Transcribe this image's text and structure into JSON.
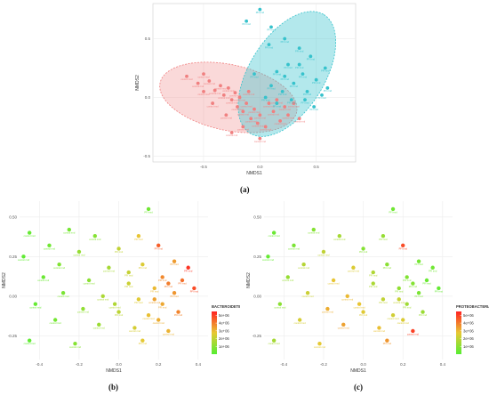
{
  "colors": {
    "control": "#f08080",
    "pfi": "#36c2cc",
    "control_fill": "rgba(240,128,128,0.30)",
    "pfi_fill": "rgba(54,194,204,0.38)",
    "overlap_fill": "rgba(120,120,120,0.15)",
    "grad_low": "#55ee33",
    "grad_mid": "#e8c834",
    "grad_high": "#ff2222"
  },
  "captions": {
    "a": "(a)",
    "b": "(b)",
    "c": "(c)"
  },
  "chart_data": [
    {
      "id": "a",
      "type": "scatter",
      "xlabel": "NMDS1",
      "ylabel": "NMDS2",
      "x_ticks": [
        "-0.5",
        "0.0",
        "0.5"
      ],
      "y_ticks": [
        "0.5",
        "0.0",
        "-0.5"
      ],
      "xlim": [
        -0.95,
        0.85
      ],
      "ylim": [
        -0.55,
        0.8
      ],
      "series": [
        {
          "name": "control rmd",
          "color_key": "control",
          "points": [
            [
              -0.65,
              0.18
            ],
            [
              -0.55,
              0.12
            ],
            [
              -0.5,
              0.2
            ],
            [
              -0.45,
              0.14
            ],
            [
              -0.4,
              0.06
            ],
            [
              -0.35,
              0.1
            ],
            [
              -0.32,
              0.02
            ],
            [
              -0.28,
              0.08
            ],
            [
              -0.25,
              -0.02
            ],
            [
              -0.22,
              0.04
            ],
            [
              -0.2,
              -0.08
            ],
            [
              -0.18,
              0.0
            ],
            [
              -0.15,
              -0.12
            ],
            [
              -0.12,
              -0.05
            ],
            [
              -0.1,
              0.05
            ],
            [
              -0.08,
              -0.18
            ],
            [
              -0.05,
              -0.1
            ],
            [
              -0.02,
              -0.22
            ],
            [
              0.0,
              -0.15
            ],
            [
              0.05,
              -0.25
            ],
            [
              0.08,
              -0.05
            ],
            [
              0.12,
              -0.12
            ],
            [
              0.15,
              -0.02
            ],
            [
              0.18,
              -0.2
            ],
            [
              0.22,
              -0.08
            ],
            [
              0.25,
              -0.15
            ],
            [
              -0.3,
              -0.15
            ],
            [
              -0.42,
              -0.05
            ],
            [
              -0.5,
              0.05
            ],
            [
              -0.15,
              -0.25
            ],
            [
              -0.25,
              -0.3
            ],
            [
              0.0,
              -0.35
            ],
            [
              0.3,
              -0.05
            ],
            [
              0.35,
              -0.18
            ]
          ]
        },
        {
          "name": "PFI rmd",
          "color_key": "pfi",
          "points": [
            [
              0.0,
              0.75
            ],
            [
              -0.12,
              0.65
            ],
            [
              0.1,
              0.6
            ],
            [
              0.22,
              0.5
            ],
            [
              0.08,
              0.45
            ],
            [
              0.35,
              0.42
            ],
            [
              0.45,
              0.35
            ],
            [
              0.25,
              0.28
            ],
            [
              0.15,
              0.22
            ],
            [
              0.38,
              0.2
            ],
            [
              0.5,
              0.15
            ],
            [
              0.3,
              0.12
            ],
            [
              0.1,
              0.1
            ],
            [
              0.2,
              0.05
            ],
            [
              0.42,
              0.05
            ],
            [
              0.55,
              0.02
            ],
            [
              0.05,
              0.0
            ],
            [
              0.28,
              -0.02
            ],
            [
              0.48,
              -0.08
            ],
            [
              0.15,
              -0.05
            ],
            [
              0.35,
              0.28
            ],
            [
              0.6,
              0.08
            ],
            [
              -0.05,
              0.2
            ],
            [
              0.22,
              0.18
            ],
            [
              0.4,
              -0.02
            ],
            [
              0.58,
              0.25
            ]
          ]
        }
      ],
      "ellipses": [
        {
          "group": "control",
          "center": [
            -0.28,
            0.0
          ],
          "semi_axes": [
            0.62,
            0.28
          ],
          "rotation_deg": 12
        },
        {
          "group": "PFI",
          "center": [
            0.24,
            0.2
          ],
          "semi_axes": [
            0.62,
            0.32
          ],
          "rotation_deg": -58
        }
      ]
    },
    {
      "id": "b",
      "type": "scatter",
      "xlabel": "NMDS1",
      "ylabel": "NMDS2",
      "x_ticks": [
        "-0.4",
        "-0.2",
        "0.0",
        "0.2",
        "0.4"
      ],
      "y_ticks": [
        "0.50",
        "0.25",
        "0.00",
        "-0.25"
      ],
      "xlim": [
        -0.5,
        0.45
      ],
      "ylim": [
        -0.4,
        0.6
      ],
      "legend": {
        "title": "BACTEROIDETES",
        "ticks": [
          "5e+06",
          "4e+06",
          "3e+06",
          "2e+06",
          "1e+06"
        ],
        "position": "right"
      },
      "colorbar_range": [
        0,
        5500000
      ],
      "points": [
        {
          "x": 0.15,
          "y": 0.55,
          "v": 500000,
          "label": "PFI rmd"
        },
        {
          "x": -0.45,
          "y": 0.4,
          "v": 300000,
          "label": "control rmd"
        },
        {
          "x": -0.25,
          "y": 0.42,
          "v": 600000,
          "label": "control rmd"
        },
        {
          "x": -0.12,
          "y": 0.38,
          "v": 900000,
          "label": "control rmd"
        },
        {
          "x": 0.1,
          "y": 0.38,
          "v": 2800000,
          "label": "PFI rmd"
        },
        {
          "x": -0.35,
          "y": 0.32,
          "v": 500000,
          "label": "control rmd"
        },
        {
          "x": -0.48,
          "y": 0.25,
          "v": 200000,
          "label": "control rmd"
        },
        {
          "x": 0.2,
          "y": 0.32,
          "v": 4500000,
          "label": "PFI rmd"
        },
        {
          "x": 0.0,
          "y": 0.3,
          "v": 2000000,
          "label": "PFI rmd"
        },
        {
          "x": -0.2,
          "y": 0.28,
          "v": 1200000,
          "label": "control rmd"
        },
        {
          "x": 0.28,
          "y": 0.22,
          "v": 3500000,
          "label": "PFI rmd"
        },
        {
          "x": 0.35,
          "y": 0.18,
          "v": 5200000,
          "label": "PFI rmd"
        },
        {
          "x": -0.3,
          "y": 0.2,
          "v": 800000,
          "label": "control rmd"
        },
        {
          "x": 0.12,
          "y": 0.2,
          "v": 2500000,
          "label": "PFI rmd"
        },
        {
          "x": -0.05,
          "y": 0.18,
          "v": 1500000,
          "label": "control rmd"
        },
        {
          "x": 0.22,
          "y": 0.12,
          "v": 3800000,
          "label": "PFI rmd"
        },
        {
          "x": 0.32,
          "y": 0.1,
          "v": 4200000,
          "label": "PFI rmd"
        },
        {
          "x": -0.38,
          "y": 0.12,
          "v": 400000,
          "label": "control rmd"
        },
        {
          "x": -0.15,
          "y": 0.1,
          "v": 1000000,
          "label": "control rmd"
        },
        {
          "x": 0.05,
          "y": 0.08,
          "v": 2200000,
          "label": "PFI rmd"
        },
        {
          "x": 0.18,
          "y": 0.05,
          "v": 3000000,
          "label": "PFI rmd"
        },
        {
          "x": 0.28,
          "y": 0.02,
          "v": 3600000,
          "label": "PFI rmd"
        },
        {
          "x": 0.38,
          "y": 0.05,
          "v": 4800000,
          "label": "PFI rmd"
        },
        {
          "x": -0.28,
          "y": 0.02,
          "v": 700000,
          "label": "control rmd"
        },
        {
          "x": -0.08,
          "y": 0.0,
          "v": 1600000,
          "label": "control rmd"
        },
        {
          "x": 0.1,
          "y": -0.02,
          "v": 2600000,
          "label": "PFI rmd"
        },
        {
          "x": 0.22,
          "y": -0.05,
          "v": 3300000,
          "label": "PFI rmd"
        },
        {
          "x": -0.42,
          "y": -0.05,
          "v": 300000,
          "label": "control rmd"
        },
        {
          "x": -0.18,
          "y": -0.08,
          "v": 1100000,
          "label": "control rmd"
        },
        {
          "x": 0.0,
          "y": -0.1,
          "v": 1900000,
          "label": "PFI rmd"
        },
        {
          "x": 0.15,
          "y": -0.12,
          "v": 2900000,
          "label": "control rmd"
        },
        {
          "x": 0.3,
          "y": -0.1,
          "v": 3900000,
          "label": "PFI rmd"
        },
        {
          "x": -0.32,
          "y": -0.15,
          "v": 600000,
          "label": "control rmd"
        },
        {
          "x": -0.1,
          "y": -0.18,
          "v": 1300000,
          "label": "control rmd"
        },
        {
          "x": 0.08,
          "y": -0.2,
          "v": 2400000,
          "label": "control rmd"
        },
        {
          "x": 0.25,
          "y": -0.22,
          "v": 3100000,
          "label": "control rmd"
        },
        {
          "x": -0.45,
          "y": -0.28,
          "v": 200000,
          "label": "control rmd"
        },
        {
          "x": -0.22,
          "y": -0.3,
          "v": 900000,
          "label": "control rmd"
        },
        {
          "x": 0.12,
          "y": -0.28,
          "v": 2700000,
          "label": "PFI rmd"
        },
        {
          "x": 0.05,
          "y": 0.15,
          "v": 2100000,
          "label": "PFI rmd"
        },
        {
          "x": 0.18,
          "y": -0.02,
          "v": 3400000,
          "label": "control rmd"
        },
        {
          "x": 0.25,
          "y": 0.08,
          "v": 4000000,
          "label": "PFI rmd"
        },
        {
          "x": -0.02,
          "y": -0.05,
          "v": 1700000,
          "label": "control rmd"
        },
        {
          "x": 0.2,
          "y": -0.15,
          "v": 3200000,
          "label": "control rmd"
        }
      ]
    },
    {
      "id": "c",
      "type": "scatter",
      "xlabel": "NMDS1",
      "ylabel": "NMDS2",
      "x_ticks": [
        "-0.4",
        "-0.2",
        "0.0",
        "0.2",
        "0.4"
      ],
      "y_ticks": [
        "0.50",
        "0.25",
        "0.00",
        "-0.25"
      ],
      "xlim": [
        -0.5,
        0.45
      ],
      "ylim": [
        -0.4,
        0.6
      ],
      "legend": {
        "title": "PROTEOBACTERIA",
        "ticks": [
          "5e+06",
          "4e+06",
          "3e+06",
          "2e+06",
          "1e+06"
        ],
        "position": "right"
      },
      "colorbar_range": [
        0,
        5500000
      ],
      "points": [
        {
          "x": 0.15,
          "y": 0.55,
          "v": 500000,
          "label": "PFI rmd"
        },
        {
          "x": -0.45,
          "y": 0.4,
          "v": 400000,
          "label": "control rmd"
        },
        {
          "x": -0.25,
          "y": 0.42,
          "v": 900000,
          "label": "control rmd"
        },
        {
          "x": -0.12,
          "y": 0.38,
          "v": 1500000,
          "label": "control rmd"
        },
        {
          "x": 0.1,
          "y": 0.38,
          "v": 1200000,
          "label": "PFI rmd"
        },
        {
          "x": -0.35,
          "y": 0.32,
          "v": 700000,
          "label": "control rmd"
        },
        {
          "x": -0.48,
          "y": 0.25,
          "v": 300000,
          "label": "control rmd"
        },
        {
          "x": 0.2,
          "y": 0.32,
          "v": 4800000,
          "label": "PFI rmd"
        },
        {
          "x": 0.0,
          "y": 0.3,
          "v": 900000,
          "label": "PFI rmd"
        },
        {
          "x": -0.2,
          "y": 0.28,
          "v": 2000000,
          "label": "control rmd"
        },
        {
          "x": 0.28,
          "y": 0.22,
          "v": 600000,
          "label": "PFI rmd"
        },
        {
          "x": 0.35,
          "y": 0.18,
          "v": 500000,
          "label": "PFI rmd"
        },
        {
          "x": -0.3,
          "y": 0.2,
          "v": 1800000,
          "label": "control rmd"
        },
        {
          "x": 0.12,
          "y": 0.2,
          "v": 1000000,
          "label": "PFI rmd"
        },
        {
          "x": -0.05,
          "y": 0.18,
          "v": 2500000,
          "label": "control rmd"
        },
        {
          "x": 0.22,
          "y": 0.12,
          "v": 800000,
          "label": "PFI rmd"
        },
        {
          "x": 0.32,
          "y": 0.1,
          "v": 400000,
          "label": "PFI rmd"
        },
        {
          "x": -0.38,
          "y": 0.12,
          "v": 1200000,
          "label": "control rmd"
        },
        {
          "x": -0.15,
          "y": 0.1,
          "v": 2800000,
          "label": "control rmd"
        },
        {
          "x": 0.05,
          "y": 0.08,
          "v": 1600000,
          "label": "PFI rmd"
        },
        {
          "x": 0.18,
          "y": 0.05,
          "v": 1100000,
          "label": "PFI rmd"
        },
        {
          "x": 0.28,
          "y": 0.02,
          "v": 700000,
          "label": "PFI rmd"
        },
        {
          "x": 0.38,
          "y": 0.05,
          "v": 300000,
          "label": "PFI rmd"
        },
        {
          "x": -0.28,
          "y": 0.02,
          "v": 2200000,
          "label": "control rmd"
        },
        {
          "x": -0.08,
          "y": 0.0,
          "v": 3000000,
          "label": "control rmd"
        },
        {
          "x": 0.1,
          "y": -0.02,
          "v": 2000000,
          "label": "PFI rmd"
        },
        {
          "x": 0.22,
          "y": -0.05,
          "v": 1400000,
          "label": "PFI rmd"
        },
        {
          "x": -0.42,
          "y": -0.05,
          "v": 1000000,
          "label": "control rmd"
        },
        {
          "x": -0.18,
          "y": -0.08,
          "v": 3200000,
          "label": "control rmd"
        },
        {
          "x": 0.0,
          "y": -0.1,
          "v": 2600000,
          "label": "PFI rmd"
        },
        {
          "x": 0.15,
          "y": -0.12,
          "v": 2300000,
          "label": "control rmd"
        },
        {
          "x": 0.3,
          "y": -0.1,
          "v": 1300000,
          "label": "PFI rmd"
        },
        {
          "x": -0.32,
          "y": -0.15,
          "v": 2400000,
          "label": "control rmd"
        },
        {
          "x": -0.1,
          "y": -0.18,
          "v": 3400000,
          "label": "control rmd"
        },
        {
          "x": 0.08,
          "y": -0.2,
          "v": 2900000,
          "label": "control rmd"
        },
        {
          "x": 0.25,
          "y": -0.22,
          "v": 5000000,
          "label": "control rmd"
        },
        {
          "x": -0.45,
          "y": -0.28,
          "v": 1500000,
          "label": "control rmd"
        },
        {
          "x": -0.22,
          "y": -0.3,
          "v": 2700000,
          "label": "control rmd"
        },
        {
          "x": 0.12,
          "y": -0.28,
          "v": 3600000,
          "label": "PFI rmd"
        },
        {
          "x": 0.05,
          "y": 0.15,
          "v": 1700000,
          "label": "PFI rmd"
        },
        {
          "x": 0.18,
          "y": -0.02,
          "v": 2100000,
          "label": "control rmd"
        },
        {
          "x": 0.25,
          "y": 0.08,
          "v": 900000,
          "label": "PFI rmd"
        },
        {
          "x": -0.02,
          "y": -0.05,
          "v": 2800000,
          "label": "control rmd"
        },
        {
          "x": 0.2,
          "y": -0.15,
          "v": 2500000,
          "label": "control rmd"
        }
      ]
    }
  ]
}
